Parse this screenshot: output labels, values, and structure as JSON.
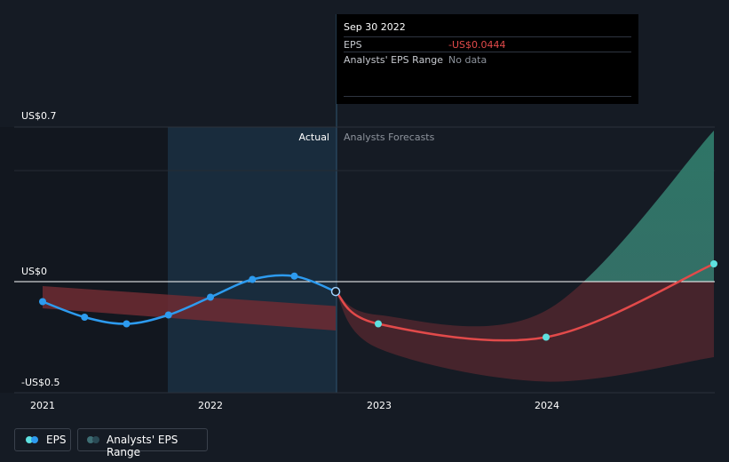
{
  "chart_data": {
    "type": "line",
    "y_axis": {
      "labels": [
        "US$0.7",
        "US$0",
        "-US$0.5"
      ],
      "min": -0.5,
      "max": 0.7
    },
    "x_axis": {
      "labels": [
        "2021",
        "2022",
        "2023",
        "2024"
      ]
    },
    "regions": {
      "actual_label": "Actual",
      "forecast_label": "Analysts Forecasts"
    },
    "series": [
      {
        "name": "EPS",
        "segment": "actual",
        "points": [
          {
            "x": "2021-01",
            "y": -0.09
          },
          {
            "x": "2021-04",
            "y": -0.16
          },
          {
            "x": "2021-07",
            "y": -0.19
          },
          {
            "x": "2021-10",
            "y": -0.15
          },
          {
            "x": "2022-01",
            "y": -0.07
          },
          {
            "x": "2022-04",
            "y": 0.01
          },
          {
            "x": "2022-07",
            "y": 0.025
          },
          {
            "x": "2022-09-30",
            "y": -0.0444
          }
        ]
      },
      {
        "name": "EPS",
        "segment": "forecast",
        "points": [
          {
            "x": "2022-09-30",
            "y": -0.0444
          },
          {
            "x": "2023-01",
            "y": -0.19
          },
          {
            "x": "2024-01",
            "y": -0.25
          },
          {
            "x": "2025-01",
            "y": 0.08
          }
        ]
      }
    ],
    "analysts_eps_range": {
      "actual": {
        "x_start": "2021-01",
        "x_end": "2022-09-30",
        "upper_start": -0.02,
        "upper_end": -0.11,
        "lower_start": -0.12,
        "lower_end": -0.22
      },
      "forecast": {
        "upper": [
          {
            "x": "2022-09-30",
            "y": -0.04
          },
          {
            "x": "2023-01",
            "y": -0.15
          },
          {
            "x": "2024-01",
            "y": -0.13
          },
          {
            "x": "2025-01",
            "y": 0.68
          }
        ],
        "lower": [
          {
            "x": "2022-09-30",
            "y": -0.05
          },
          {
            "x": "2023-01",
            "y": -0.3
          },
          {
            "x": "2024-01",
            "y": -0.45
          },
          {
            "x": "2025-01",
            "y": -0.34
          }
        ]
      }
    },
    "tooltip": {
      "date": "Sep 30 2022",
      "rows": [
        {
          "label": "EPS",
          "value": "-US$0.0444"
        },
        {
          "label": "Analysts' EPS Range",
          "value": "No data"
        }
      ]
    },
    "legend": [
      {
        "label": "EPS"
      },
      {
        "label": "Analysts' EPS Range"
      }
    ],
    "colors": {
      "background": "#151b24",
      "eps_actual": "#2d9bef",
      "eps_forecast": "#e24a4a",
      "positive_range": "#3d7a72",
      "negative_range": "#6f2c33",
      "highlight": "#1d3b52",
      "legend_eps": "#5ee1e0",
      "legend_range": "#3e6e74",
      "negative_value": "#e24a4a",
      "muted_text": "#8d939c"
    }
  }
}
